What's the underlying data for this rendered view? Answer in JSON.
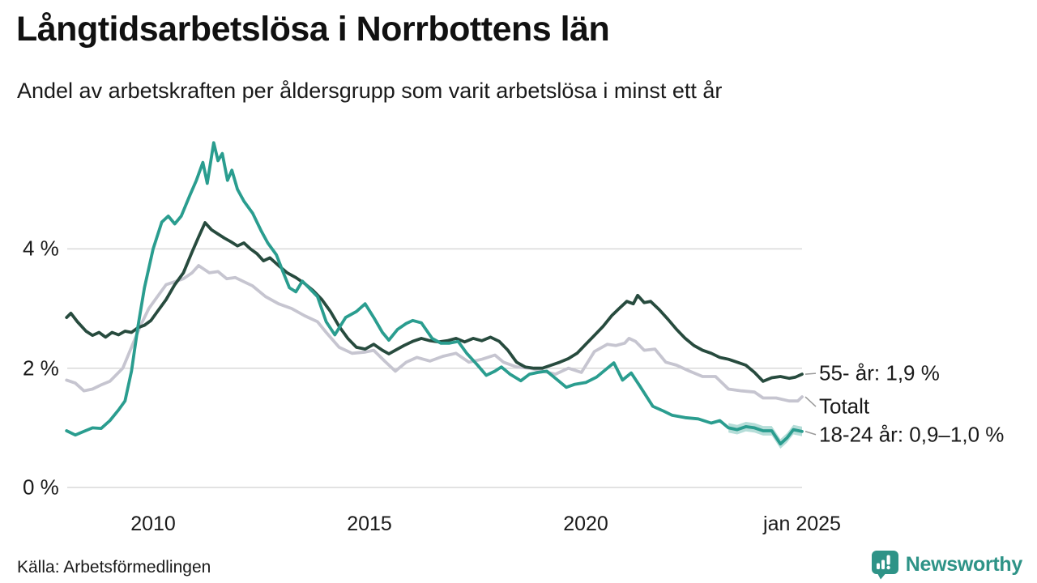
{
  "header": {
    "title": "Långtidsarbetslösa i Norrbottens län",
    "subtitle": "Andel av arbetskraften per åldersgrupp som varit arbetslösa i minst ett år"
  },
  "footer": {
    "source": "Källa: Arbetsförmedlingen",
    "logo_text": "Newsworthy",
    "logo_color": "#2e9387"
  },
  "chart_data": {
    "type": "line",
    "title": "Långtidsarbetslösa i Norrbottens län",
    "subtitle": "Andel av arbetskraften per åldersgrupp som varit arbetslösa i minst ett år",
    "unit": "% av arbetskraften",
    "x_axis": {
      "range": [
        2008,
        2025.05
      ],
      "ticks": [
        {
          "label": "2010",
          "year": 2010
        },
        {
          "label": "2015",
          "year": 2015
        },
        {
          "label": "2020",
          "year": 2020
        },
        {
          "label": "jan 2025",
          "year": 2025
        }
      ]
    },
    "y_axis": {
      "range": [
        0,
        6.2
      ],
      "grid": true,
      "ticks": [
        {
          "label": "0 %",
          "value": 0
        },
        {
          "label": "2 %",
          "value": 2
        },
        {
          "label": "4 %",
          "value": 4
        }
      ]
    },
    "style": {
      "gridline_color": "#d9d9d9",
      "leader_color": "#999999",
      "background": "#ffffff"
    },
    "legend_position": "right-end-labels",
    "series": [
      {
        "name": "55- år",
        "end_label": "55- år: 1,9 %",
        "end_value": 1.9,
        "color": "#274b3e",
        "points": [
          [
            2008.0,
            2.85
          ],
          [
            2008.1,
            2.92
          ],
          [
            2008.25,
            2.78
          ],
          [
            2008.45,
            2.62
          ],
          [
            2008.6,
            2.55
          ],
          [
            2008.75,
            2.6
          ],
          [
            2008.9,
            2.52
          ],
          [
            2009.05,
            2.6
          ],
          [
            2009.2,
            2.56
          ],
          [
            2009.35,
            2.62
          ],
          [
            2009.5,
            2.6
          ],
          [
            2009.65,
            2.68
          ],
          [
            2009.8,
            2.72
          ],
          [
            2009.95,
            2.8
          ],
          [
            2010.1,
            2.95
          ],
          [
            2010.3,
            3.15
          ],
          [
            2010.5,
            3.4
          ],
          [
            2010.7,
            3.6
          ],
          [
            2010.9,
            3.95
          ],
          [
            2011.05,
            4.2
          ],
          [
            2011.2,
            4.44
          ],
          [
            2011.35,
            4.32
          ],
          [
            2011.5,
            4.25
          ],
          [
            2011.65,
            4.18
          ],
          [
            2011.8,
            4.12
          ],
          [
            2011.95,
            4.05
          ],
          [
            2012.1,
            4.1
          ],
          [
            2012.25,
            4.0
          ],
          [
            2012.4,
            3.92
          ],
          [
            2012.55,
            3.8
          ],
          [
            2012.7,
            3.85
          ],
          [
            2012.9,
            3.72
          ],
          [
            2013.1,
            3.6
          ],
          [
            2013.3,
            3.52
          ],
          [
            2013.5,
            3.42
          ],
          [
            2013.7,
            3.3
          ],
          [
            2013.9,
            3.15
          ],
          [
            2014.1,
            2.95
          ],
          [
            2014.3,
            2.7
          ],
          [
            2014.5,
            2.5
          ],
          [
            2014.7,
            2.35
          ],
          [
            2014.9,
            2.32
          ],
          [
            2015.1,
            2.4
          ],
          [
            2015.3,
            2.3
          ],
          [
            2015.45,
            2.24
          ],
          [
            2015.6,
            2.3
          ],
          [
            2015.8,
            2.38
          ],
          [
            2016.0,
            2.45
          ],
          [
            2016.2,
            2.5
          ],
          [
            2016.4,
            2.46
          ],
          [
            2016.6,
            2.44
          ],
          [
            2016.8,
            2.46
          ],
          [
            2017.0,
            2.5
          ],
          [
            2017.2,
            2.44
          ],
          [
            2017.4,
            2.5
          ],
          [
            2017.6,
            2.46
          ],
          [
            2017.8,
            2.52
          ],
          [
            2018.0,
            2.45
          ],
          [
            2018.2,
            2.3
          ],
          [
            2018.4,
            2.1
          ],
          [
            2018.6,
            2.02
          ],
          [
            2018.8,
            2.0
          ],
          [
            2019.0,
            2.0
          ],
          [
            2019.2,
            2.05
          ],
          [
            2019.4,
            2.1
          ],
          [
            2019.6,
            2.16
          ],
          [
            2019.8,
            2.25
          ],
          [
            2020.0,
            2.4
          ],
          [
            2020.2,
            2.55
          ],
          [
            2020.4,
            2.7
          ],
          [
            2020.6,
            2.88
          ],
          [
            2020.8,
            3.02
          ],
          [
            2020.95,
            3.12
          ],
          [
            2021.1,
            3.08
          ],
          [
            2021.2,
            3.22
          ],
          [
            2021.35,
            3.1
          ],
          [
            2021.5,
            3.12
          ],
          [
            2021.7,
            2.98
          ],
          [
            2021.9,
            2.82
          ],
          [
            2022.1,
            2.65
          ],
          [
            2022.3,
            2.5
          ],
          [
            2022.5,
            2.38
          ],
          [
            2022.7,
            2.3
          ],
          [
            2022.9,
            2.25
          ],
          [
            2023.1,
            2.18
          ],
          [
            2023.3,
            2.15
          ],
          [
            2023.5,
            2.1
          ],
          [
            2023.7,
            2.05
          ],
          [
            2023.9,
            1.93
          ],
          [
            2024.1,
            1.78
          ],
          [
            2024.3,
            1.84
          ],
          [
            2024.5,
            1.86
          ],
          [
            2024.7,
            1.83
          ],
          [
            2024.85,
            1.85
          ],
          [
            2025.0,
            1.9
          ]
        ]
      },
      {
        "name": "Totalt",
        "end_label": "Totalt",
        "end_value": 1.5,
        "color": "#c6c5d0",
        "points": [
          [
            2008.0,
            1.8
          ],
          [
            2008.2,
            1.75
          ],
          [
            2008.4,
            1.62
          ],
          [
            2008.6,
            1.65
          ],
          [
            2008.8,
            1.72
          ],
          [
            2009.0,
            1.78
          ],
          [
            2009.3,
            2.0
          ],
          [
            2009.5,
            2.35
          ],
          [
            2009.7,
            2.7
          ],
          [
            2009.9,
            3.0
          ],
          [
            2010.1,
            3.2
          ],
          [
            2010.3,
            3.4
          ],
          [
            2010.5,
            3.45
          ],
          [
            2010.7,
            3.5
          ],
          [
            2010.9,
            3.6
          ],
          [
            2011.05,
            3.72
          ],
          [
            2011.3,
            3.6
          ],
          [
            2011.5,
            3.62
          ],
          [
            2011.7,
            3.5
          ],
          [
            2011.9,
            3.52
          ],
          [
            2012.1,
            3.45
          ],
          [
            2012.3,
            3.38
          ],
          [
            2012.6,
            3.2
          ],
          [
            2012.9,
            3.08
          ],
          [
            2013.2,
            3.0
          ],
          [
            2013.5,
            2.88
          ],
          [
            2013.8,
            2.78
          ],
          [
            2014.0,
            2.6
          ],
          [
            2014.3,
            2.35
          ],
          [
            2014.6,
            2.25
          ],
          [
            2014.9,
            2.27
          ],
          [
            2015.1,
            2.3
          ],
          [
            2015.35,
            2.12
          ],
          [
            2015.6,
            1.95
          ],
          [
            2015.85,
            2.1
          ],
          [
            2016.1,
            2.18
          ],
          [
            2016.4,
            2.12
          ],
          [
            2016.7,
            2.2
          ],
          [
            2017.0,
            2.25
          ],
          [
            2017.3,
            2.1
          ],
          [
            2017.6,
            2.15
          ],
          [
            2017.9,
            2.22
          ],
          [
            2018.1,
            2.1
          ],
          [
            2018.4,
            2.02
          ],
          [
            2018.7,
            2.0
          ],
          [
            2019.0,
            1.95
          ],
          [
            2019.3,
            1.9
          ],
          [
            2019.6,
            2.0
          ],
          [
            2019.9,
            1.93
          ],
          [
            2020.2,
            2.28
          ],
          [
            2020.5,
            2.4
          ],
          [
            2020.7,
            2.38
          ],
          [
            2020.9,
            2.42
          ],
          [
            2021.0,
            2.5
          ],
          [
            2021.15,
            2.45
          ],
          [
            2021.35,
            2.3
          ],
          [
            2021.6,
            2.32
          ],
          [
            2021.85,
            2.1
          ],
          [
            2022.1,
            2.05
          ],
          [
            2022.4,
            1.95
          ],
          [
            2022.7,
            1.86
          ],
          [
            2023.0,
            1.86
          ],
          [
            2023.3,
            1.65
          ],
          [
            2023.6,
            1.62
          ],
          [
            2023.9,
            1.6
          ],
          [
            2024.1,
            1.5
          ],
          [
            2024.4,
            1.5
          ],
          [
            2024.7,
            1.45
          ],
          [
            2024.9,
            1.45
          ],
          [
            2025.0,
            1.52
          ]
        ]
      },
      {
        "name": "18-24 år",
        "end_label": "18-24 år: 0,9–1,0 %",
        "end_value_range": [
          0.9,
          1.0
        ],
        "color": "#2a9d8f",
        "band": {
          "start": 2023.3,
          "halfwidth": 0.08,
          "opacity": 0.35
        },
        "points": [
          [
            2008.0,
            0.95
          ],
          [
            2008.2,
            0.88
          ],
          [
            2008.4,
            0.94
          ],
          [
            2008.6,
            1.0
          ],
          [
            2008.8,
            0.99
          ],
          [
            2009.0,
            1.12
          ],
          [
            2009.2,
            1.3
          ],
          [
            2009.35,
            1.45
          ],
          [
            2009.5,
            1.95
          ],
          [
            2009.65,
            2.7
          ],
          [
            2009.8,
            3.35
          ],
          [
            2010.0,
            4.0
          ],
          [
            2010.2,
            4.45
          ],
          [
            2010.35,
            4.55
          ],
          [
            2010.5,
            4.42
          ],
          [
            2010.65,
            4.55
          ],
          [
            2010.85,
            4.9
          ],
          [
            2011.0,
            5.15
          ],
          [
            2011.15,
            5.45
          ],
          [
            2011.25,
            5.1
          ],
          [
            2011.4,
            5.78
          ],
          [
            2011.5,
            5.48
          ],
          [
            2011.6,
            5.6
          ],
          [
            2011.72,
            5.15
          ],
          [
            2011.82,
            5.32
          ],
          [
            2011.95,
            5.0
          ],
          [
            2012.1,
            4.8
          ],
          [
            2012.3,
            4.6
          ],
          [
            2012.5,
            4.3
          ],
          [
            2012.65,
            4.1
          ],
          [
            2012.85,
            3.9
          ],
          [
            2013.0,
            3.62
          ],
          [
            2013.15,
            3.35
          ],
          [
            2013.3,
            3.28
          ],
          [
            2013.45,
            3.46
          ],
          [
            2013.6,
            3.35
          ],
          [
            2013.8,
            3.2
          ],
          [
            2014.0,
            2.78
          ],
          [
            2014.2,
            2.56
          ],
          [
            2014.45,
            2.85
          ],
          [
            2014.7,
            2.95
          ],
          [
            2014.9,
            3.08
          ],
          [
            2015.1,
            2.85
          ],
          [
            2015.3,
            2.6
          ],
          [
            2015.45,
            2.47
          ],
          [
            2015.65,
            2.65
          ],
          [
            2015.85,
            2.75
          ],
          [
            2016.0,
            2.8
          ],
          [
            2016.2,
            2.76
          ],
          [
            2016.45,
            2.5
          ],
          [
            2016.65,
            2.42
          ],
          [
            2016.85,
            2.42
          ],
          [
            2017.05,
            2.45
          ],
          [
            2017.25,
            2.25
          ],
          [
            2017.5,
            2.05
          ],
          [
            2017.7,
            1.88
          ],
          [
            2017.9,
            1.95
          ],
          [
            2018.05,
            2.02
          ],
          [
            2018.25,
            1.9
          ],
          [
            2018.5,
            1.79
          ],
          [
            2018.7,
            1.9
          ],
          [
            2018.9,
            1.93
          ],
          [
            2019.1,
            1.95
          ],
          [
            2019.3,
            1.83
          ],
          [
            2019.55,
            1.68
          ],
          [
            2019.75,
            1.73
          ],
          [
            2020.0,
            1.76
          ],
          [
            2020.25,
            1.85
          ],
          [
            2020.5,
            2.0
          ],
          [
            2020.65,
            2.09
          ],
          [
            2020.85,
            1.8
          ],
          [
            2021.05,
            1.92
          ],
          [
            2021.25,
            1.7
          ],
          [
            2021.55,
            1.36
          ],
          [
            2021.8,
            1.28
          ],
          [
            2022.0,
            1.21
          ],
          [
            2022.3,
            1.17
          ],
          [
            2022.6,
            1.15
          ],
          [
            2022.9,
            1.08
          ],
          [
            2023.1,
            1.12
          ],
          [
            2023.3,
            1.0
          ],
          [
            2023.5,
            0.97
          ],
          [
            2023.7,
            1.02
          ],
          [
            2023.9,
            1.0
          ],
          [
            2024.1,
            0.95
          ],
          [
            2024.3,
            0.95
          ],
          [
            2024.5,
            0.73
          ],
          [
            2024.65,
            0.83
          ],
          [
            2024.8,
            0.97
          ],
          [
            2025.0,
            0.94
          ]
        ]
      }
    ]
  }
}
